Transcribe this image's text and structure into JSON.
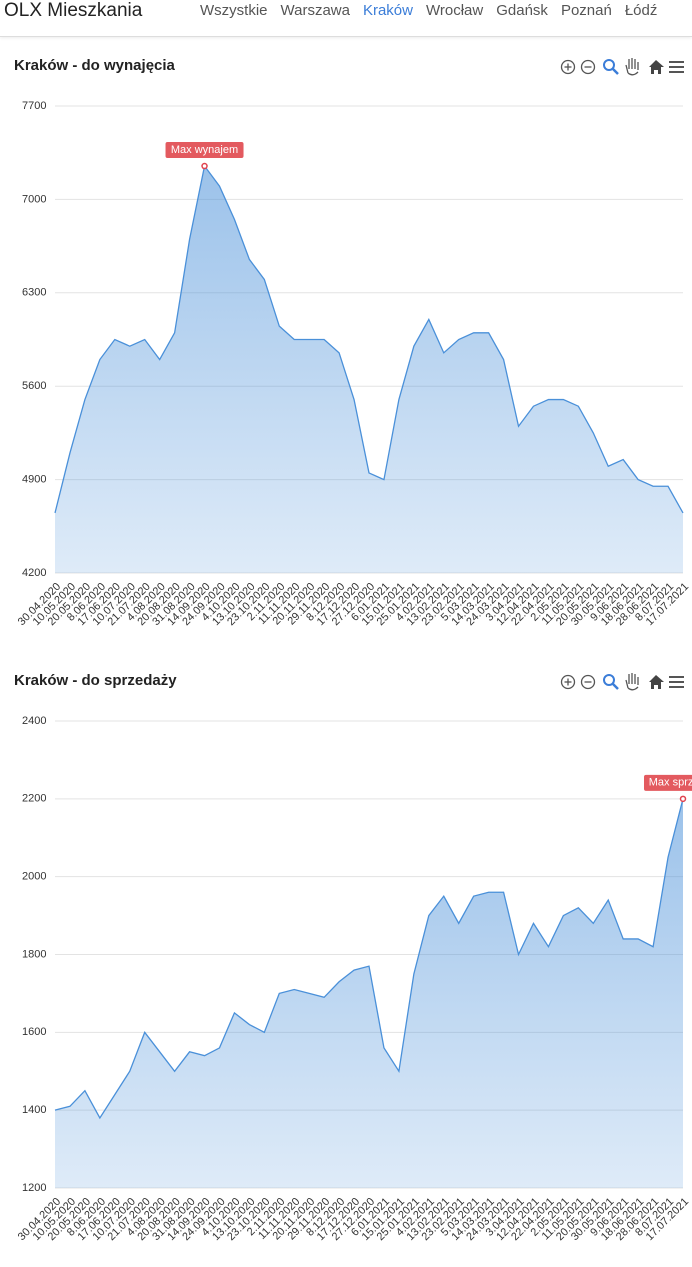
{
  "nav": {
    "brand": "OLX Mieszkania",
    "links": [
      "Wszystkie",
      "Warszawa",
      "Kraków",
      "Wrocław",
      "Gdańsk",
      "Poznań",
      "Łódź"
    ],
    "active": 2
  },
  "chart_data": [
    {
      "type": "area",
      "title": "Kraków - do wynajęcia",
      "annotation": "Max wynajem",
      "color": "#4a90d9",
      "categories": [
        "30.04.2020",
        "10.05.2020",
        "20.05.2020",
        "8.06.2020",
        "17.06.2020",
        "10.07.2020",
        "21.07.2020",
        "4.08.2020",
        "20.08.2020",
        "31.08.2020",
        "14.09.2020",
        "24.09.2020",
        "4.10.2020",
        "13.10.2020",
        "23.10.2020",
        "2.11.2020",
        "11.11.2020",
        "20.11.2020",
        "29.11.2020",
        "8.12.2020",
        "17.12.2020",
        "27.12.2020",
        "6.01.2021",
        "15.01.2021",
        "25.01.2021",
        "4.02.2021",
        "13.02.2021",
        "23.02.2021",
        "5.03.2021",
        "14.03.2021",
        "24.03.2021",
        "3.04.2021",
        "12.04.2021",
        "22.04.2021",
        "2.05.2021",
        "11.05.2021",
        "20.05.2021",
        "30.05.2021",
        "9.06.2021",
        "18.06.2021",
        "28.06.2021",
        "8.07.2021",
        "17.07.2021"
      ],
      "values": [
        4650,
        5100,
        5500,
        5800,
        5950,
        5900,
        5950,
        5800,
        6000,
        6700,
        7250,
        7100,
        6850,
        6550,
        6400,
        6050,
        5950,
        5950,
        5950,
        5850,
        5500,
        4950,
        4900,
        5500,
        5900,
        6100,
        5850,
        5950,
        6000,
        6000,
        5800,
        5300,
        5450,
        5500,
        5500,
        5450,
        5250,
        5000,
        5050,
        4900,
        4850,
        4850,
        4650
      ],
      "ylim": [
        4200,
        7700
      ],
      "yticks": [
        4200,
        4900,
        5600,
        6300,
        7000,
        7700
      ],
      "grid": true
    },
    {
      "type": "area",
      "title": "Kraków - do sprzedaży",
      "annotation": "Max sprzedaż",
      "color": "#4a90d9",
      "categories": [
        "30.04.2020",
        "10.05.2020",
        "20.05.2020",
        "8.06.2020",
        "17.06.2020",
        "10.07.2020",
        "21.07.2020",
        "4.08.2020",
        "20.08.2020",
        "31.08.2020",
        "14.09.2020",
        "24.09.2020",
        "4.10.2020",
        "13.10.2020",
        "23.10.2020",
        "2.11.2020",
        "11.11.2020",
        "20.11.2020",
        "29.11.2020",
        "8.12.2020",
        "17.12.2020",
        "27.12.2020",
        "6.01.2021",
        "15.01.2021",
        "25.01.2021",
        "4.02.2021",
        "13.02.2021",
        "23.02.2021",
        "5.03.2021",
        "14.03.2021",
        "24.03.2021",
        "3.04.2021",
        "12.04.2021",
        "22.04.2021",
        "2.05.2021",
        "11.05.2021",
        "20.05.2021",
        "30.05.2021",
        "9.06.2021",
        "18.06.2021",
        "28.06.2021",
        "8.07.2021",
        "17.07.2021"
      ],
      "values": [
        1400,
        1410,
        1450,
        1380,
        1440,
        1500,
        1600,
        1550,
        1500,
        1550,
        1540,
        1560,
        1650,
        1620,
        1600,
        1700,
        1710,
        1700,
        1690,
        1730,
        1760,
        1770,
        1560,
        1500,
        1750,
        1900,
        1950,
        1880,
        1950,
        1960,
        1960,
        1800,
        1880,
        1820,
        1900,
        1920,
        1880,
        1940,
        1840,
        1840,
        1820,
        2050,
        2200
      ],
      "ylim": [
        1200,
        2400
      ],
      "yticks": [
        1200,
        1400,
        1600,
        1800,
        2000,
        2200,
        2400
      ],
      "grid": true
    }
  ]
}
